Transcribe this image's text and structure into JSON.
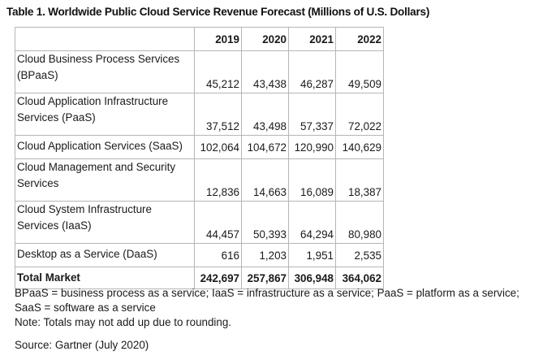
{
  "title": "Table 1. Worldwide Public Cloud Service Revenue Forecast (Millions of U.S. Dollars)",
  "table": {
    "years": [
      "2019",
      "2020",
      "2021",
      "2022"
    ],
    "rows": [
      {
        "label_lines": [
          "Cloud Business Process Services",
          "(BPaaS)"
        ],
        "values": [
          "45,212",
          "43,438",
          "46,287",
          "49,509"
        ]
      },
      {
        "label_lines": [
          "Cloud Application Infrastructure",
          "Services (PaaS)"
        ],
        "values": [
          "37,512",
          "43,498",
          "57,337",
          "72,022"
        ]
      },
      {
        "label_lines": [
          "Cloud Application Services (SaaS)"
        ],
        "values": [
          "102,064",
          "104,672",
          "120,990",
          "140,629"
        ]
      },
      {
        "label_lines": [
          "Cloud Management and Security",
          "Services"
        ],
        "values": [
          "12,836",
          "14,663",
          "16,089",
          "18,387"
        ]
      },
      {
        "label_lines": [
          "Cloud System Infrastructure",
          "Services (IaaS)"
        ],
        "values": [
          "44,457",
          "50,393",
          "64,294",
          "80,980"
        ]
      },
      {
        "label_lines": [
          "Desktop as a Service (DaaS)"
        ],
        "values": [
          "616",
          "1,203",
          "1,951",
          "2,535"
        ]
      }
    ],
    "total": {
      "label": "Total Market",
      "values": [
        "242,697",
        "257,867",
        "306,948",
        "364,062"
      ]
    }
  },
  "notes": {
    "abbreviations": "BPaaS = business process as a service; IaaS = infrastructure as a service; PaaS = platform as a service; SaaS = software as a service",
    "rounding": "Note: Totals may not add up due to rounding.",
    "source": "Source: Gartner (July 2020)"
  }
}
